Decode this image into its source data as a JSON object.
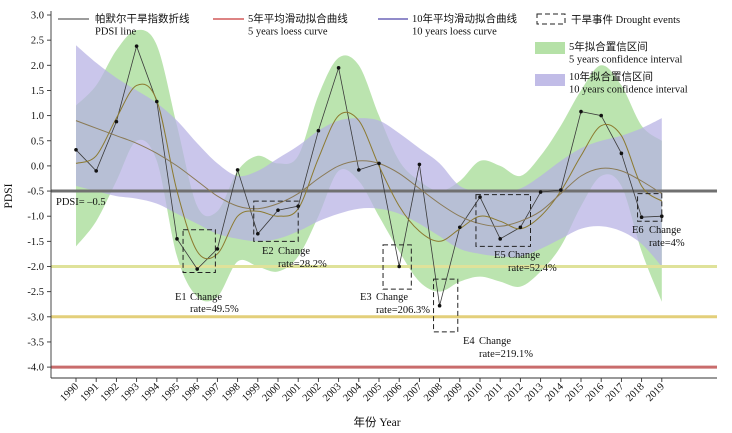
{
  "chart_data": {
    "type": "line",
    "xlabel": "年份 Year",
    "ylabel": "PDSI",
    "xlim": [
      1990,
      2019
    ],
    "ylim": [
      -4.2,
      3.0
    ],
    "yticks": [
      "3.0",
      "2.5",
      "2.0",
      "1.5",
      "1.0",
      "0.5",
      "0.0",
      "-0.5",
      "-1.0",
      "-1.5",
      "-2.0",
      "-2.5",
      "-3.0",
      "-3.5",
      "-4.0"
    ],
    "x": [
      1990,
      1991,
      1992,
      1993,
      1994,
      1995,
      1996,
      1997,
      1998,
      1999,
      2000,
      2001,
      2002,
      2003,
      2004,
      2005,
      2006,
      2007,
      2008,
      2009,
      2010,
      2011,
      2012,
      2013,
      2014,
      2015,
      2016,
      2017,
      2018,
      2019
    ],
    "series": [
      {
        "name": "帕默尔干旱指数折线\nPDSI line",
        "color": "#3a3a3a",
        "values": [
          0.32,
          -0.1,
          0.88,
          2.38,
          1.28,
          -1.45,
          -2.05,
          -1.65,
          -0.08,
          -1.35,
          -0.88,
          -0.8,
          0.7,
          1.95,
          -0.08,
          0.05,
          -2.0,
          0.03,
          -2.78,
          -1.22,
          -0.62,
          -1.45,
          -1.22,
          -0.52,
          -0.48,
          1.08,
          1.0,
          0.25,
          -1.02,
          -1.0
        ]
      },
      {
        "name": "5年平均滑动拟合曲线\n5 years loess curve",
        "color": "#8c7a30",
        "values": [
          0.05,
          0.2,
          0.95,
          1.6,
          1.3,
          -0.5,
          -1.7,
          -1.75,
          -1.0,
          -0.9,
          -1.0,
          -0.85,
          0.15,
          1.0,
          0.9,
          0.0,
          -0.8,
          -1.3,
          -1.5,
          -1.25,
          -1.0,
          -1.1,
          -1.25,
          -1.0,
          -0.5,
          0.2,
          0.8,
          0.6,
          -0.4,
          -0.7
        ]
      },
      {
        "name": "10年平均滑动拟合曲线\n10 years loess curve",
        "color": "#8a7a55",
        "values": [
          0.9,
          0.75,
          0.6,
          0.45,
          0.25,
          0.0,
          -0.3,
          -0.6,
          -0.8,
          -0.85,
          -0.75,
          -0.55,
          -0.25,
          0.0,
          0.1,
          0.05,
          -0.15,
          -0.45,
          -0.75,
          -1.0,
          -1.15,
          -1.2,
          -1.1,
          -0.9,
          -0.55,
          -0.2,
          -0.05,
          -0.1,
          -0.3,
          -0.55
        ]
      }
    ],
    "bands": [
      {
        "name": "5年拟合置信区间\n5 years confidence interval",
        "color": "#a8dc98",
        "upper": [
          1.2,
          1.6,
          2.3,
          2.7,
          2.4,
          0.8,
          -0.8,
          -0.9,
          -0.1,
          0.2,
          0.05,
          0.2,
          1.4,
          2.15,
          2.0,
          1.0,
          0.1,
          -0.3,
          -0.5,
          -0.3,
          0.1,
          0.0,
          -0.2,
          0.2,
          0.8,
          1.5,
          2.0,
          1.6,
          0.8,
          0.5
        ],
        "lower": [
          -1.6,
          -1.1,
          -0.3,
          0.5,
          0.1,
          -1.8,
          -2.6,
          -2.6,
          -1.9,
          -2.0,
          -2.1,
          -1.8,
          -1.0,
          -0.1,
          -0.3,
          -1.0,
          -1.7,
          -2.3,
          -2.5,
          -2.3,
          -2.2,
          -2.3,
          -2.4,
          -2.1,
          -1.6,
          -0.8,
          -0.2,
          -0.4,
          -1.7,
          -2.7
        ]
      },
      {
        "name": "10年拟合置信区间\n10 years confidence interval",
        "color": "#b6b0e3",
        "upper": [
          2.4,
          2.05,
          1.75,
          1.5,
          1.25,
          0.9,
          0.45,
          0.05,
          -0.2,
          -0.1,
          0.15,
          0.4,
          0.7,
          0.9,
          0.95,
          0.9,
          0.65,
          0.35,
          0.05,
          -0.4,
          -0.5,
          -0.5,
          -0.45,
          -0.2,
          0.1,
          0.35,
          0.5,
          0.6,
          0.75,
          0.95
        ],
        "lower": [
          -0.4,
          -0.5,
          -0.6,
          -0.65,
          -0.75,
          -0.95,
          -1.15,
          -1.35,
          -1.45,
          -1.5,
          -1.45,
          -1.3,
          -1.1,
          -0.95,
          -0.85,
          -0.85,
          -0.95,
          -1.15,
          -1.4,
          -1.65,
          -1.75,
          -1.8,
          -1.8,
          -1.65,
          -1.45,
          -1.25,
          -1.2,
          -1.3,
          -1.55,
          -2.0
        ]
      }
    ],
    "hlines": [
      {
        "y": -0.5,
        "color": "#707070"
      },
      {
        "y": -2.0,
        "color": "#dfe29a"
      },
      {
        "y": -3.0,
        "color": "#e3cf7a"
      },
      {
        "y": -4.0,
        "color": "#c96c6c"
      }
    ],
    "drought_legend": "干旱事件 Drought events",
    "pdsi_threshold_label": "PDSI= –0.5",
    "drought_events": [
      {
        "label_1": "E1",
        "label_2": "Change",
        "label_3": "rate=49.5%",
        "x0": 1995.3,
        "x1": 1996.9,
        "y0": -2.12,
        "y1": -1.27
      },
      {
        "label_1": "E2",
        "label_2": "Change",
        "label_3": "rate=28.2%",
        "x0": 1998.8,
        "x1": 2001.0,
        "y0": -1.5,
        "y1": -0.7
      },
      {
        "label_1": "E3",
        "label_2": "Change",
        "label_3": "rate=206.3%",
        "x0": 2005.2,
        "x1": 2006.6,
        "y0": -2.45,
        "y1": -1.57
      },
      {
        "label_1": "E4",
        "label_2": "Change",
        "label_3": "rate=219.1%",
        "x0": 2007.7,
        "x1": 2008.9,
        "y0": -3.3,
        "y1": -2.25
      },
      {
        "label_1": "E5",
        "label_2": "Change",
        "label_3": "rate=52.4%",
        "x0": 2009.8,
        "x1": 2012.5,
        "y0": -1.6,
        "y1": -0.57
      },
      {
        "label_1": "E6",
        "label_2": "Change",
        "label_3": "rate=4%",
        "x0": 2017.8,
        "x1": 2019.0,
        "y0": -1.1,
        "y1": -0.55
      }
    ]
  }
}
